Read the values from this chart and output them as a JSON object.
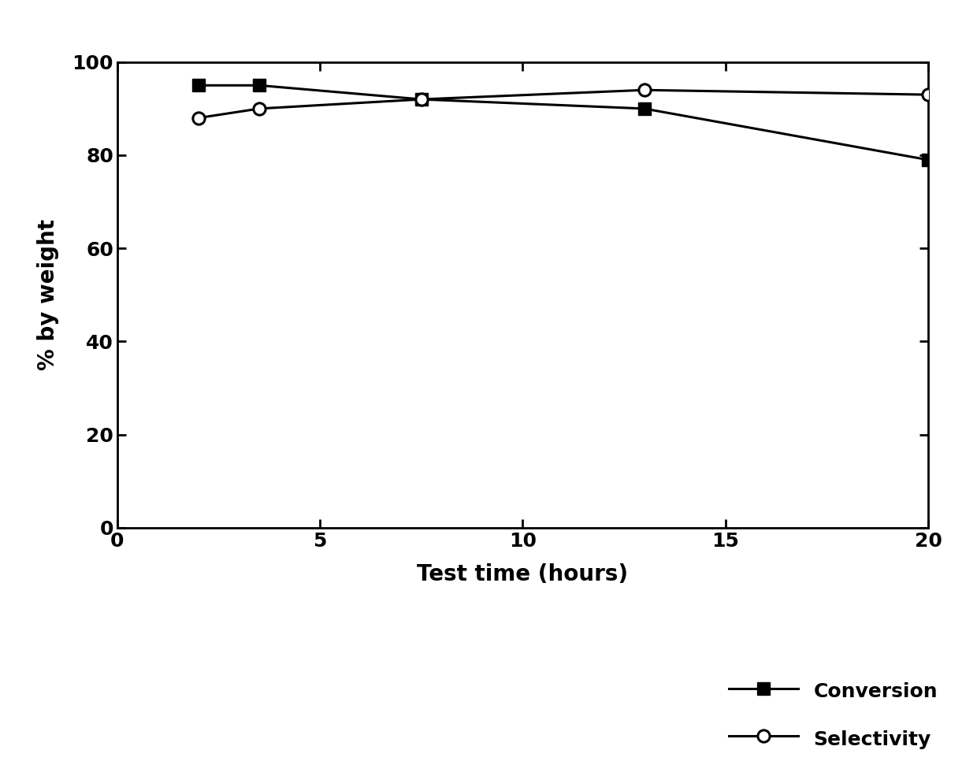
{
  "conversion_x": [
    2,
    3.5,
    7.5,
    13,
    20
  ],
  "conversion_y": [
    95,
    95,
    92,
    90,
    79
  ],
  "selectivity_x": [
    2,
    3.5,
    7.5,
    13,
    20
  ],
  "selectivity_y": [
    88,
    90,
    92,
    94,
    93
  ],
  "xlabel": "Test time (hours)",
  "ylabel": "% by weight",
  "xlim": [
    0,
    20
  ],
  "ylim": [
    0,
    100
  ],
  "xticks": [
    0,
    5,
    10,
    15,
    20
  ],
  "yticks": [
    0,
    20,
    40,
    60,
    80,
    100
  ],
  "legend_conversion": "Conversion",
  "legend_selectivity": "Selectivity",
  "line_color": "#000000",
  "bg_color": "#ffffff",
  "label_fontsize": 20,
  "tick_fontsize": 18,
  "legend_fontsize": 18,
  "marker_size": 11,
  "line_width": 2.2
}
